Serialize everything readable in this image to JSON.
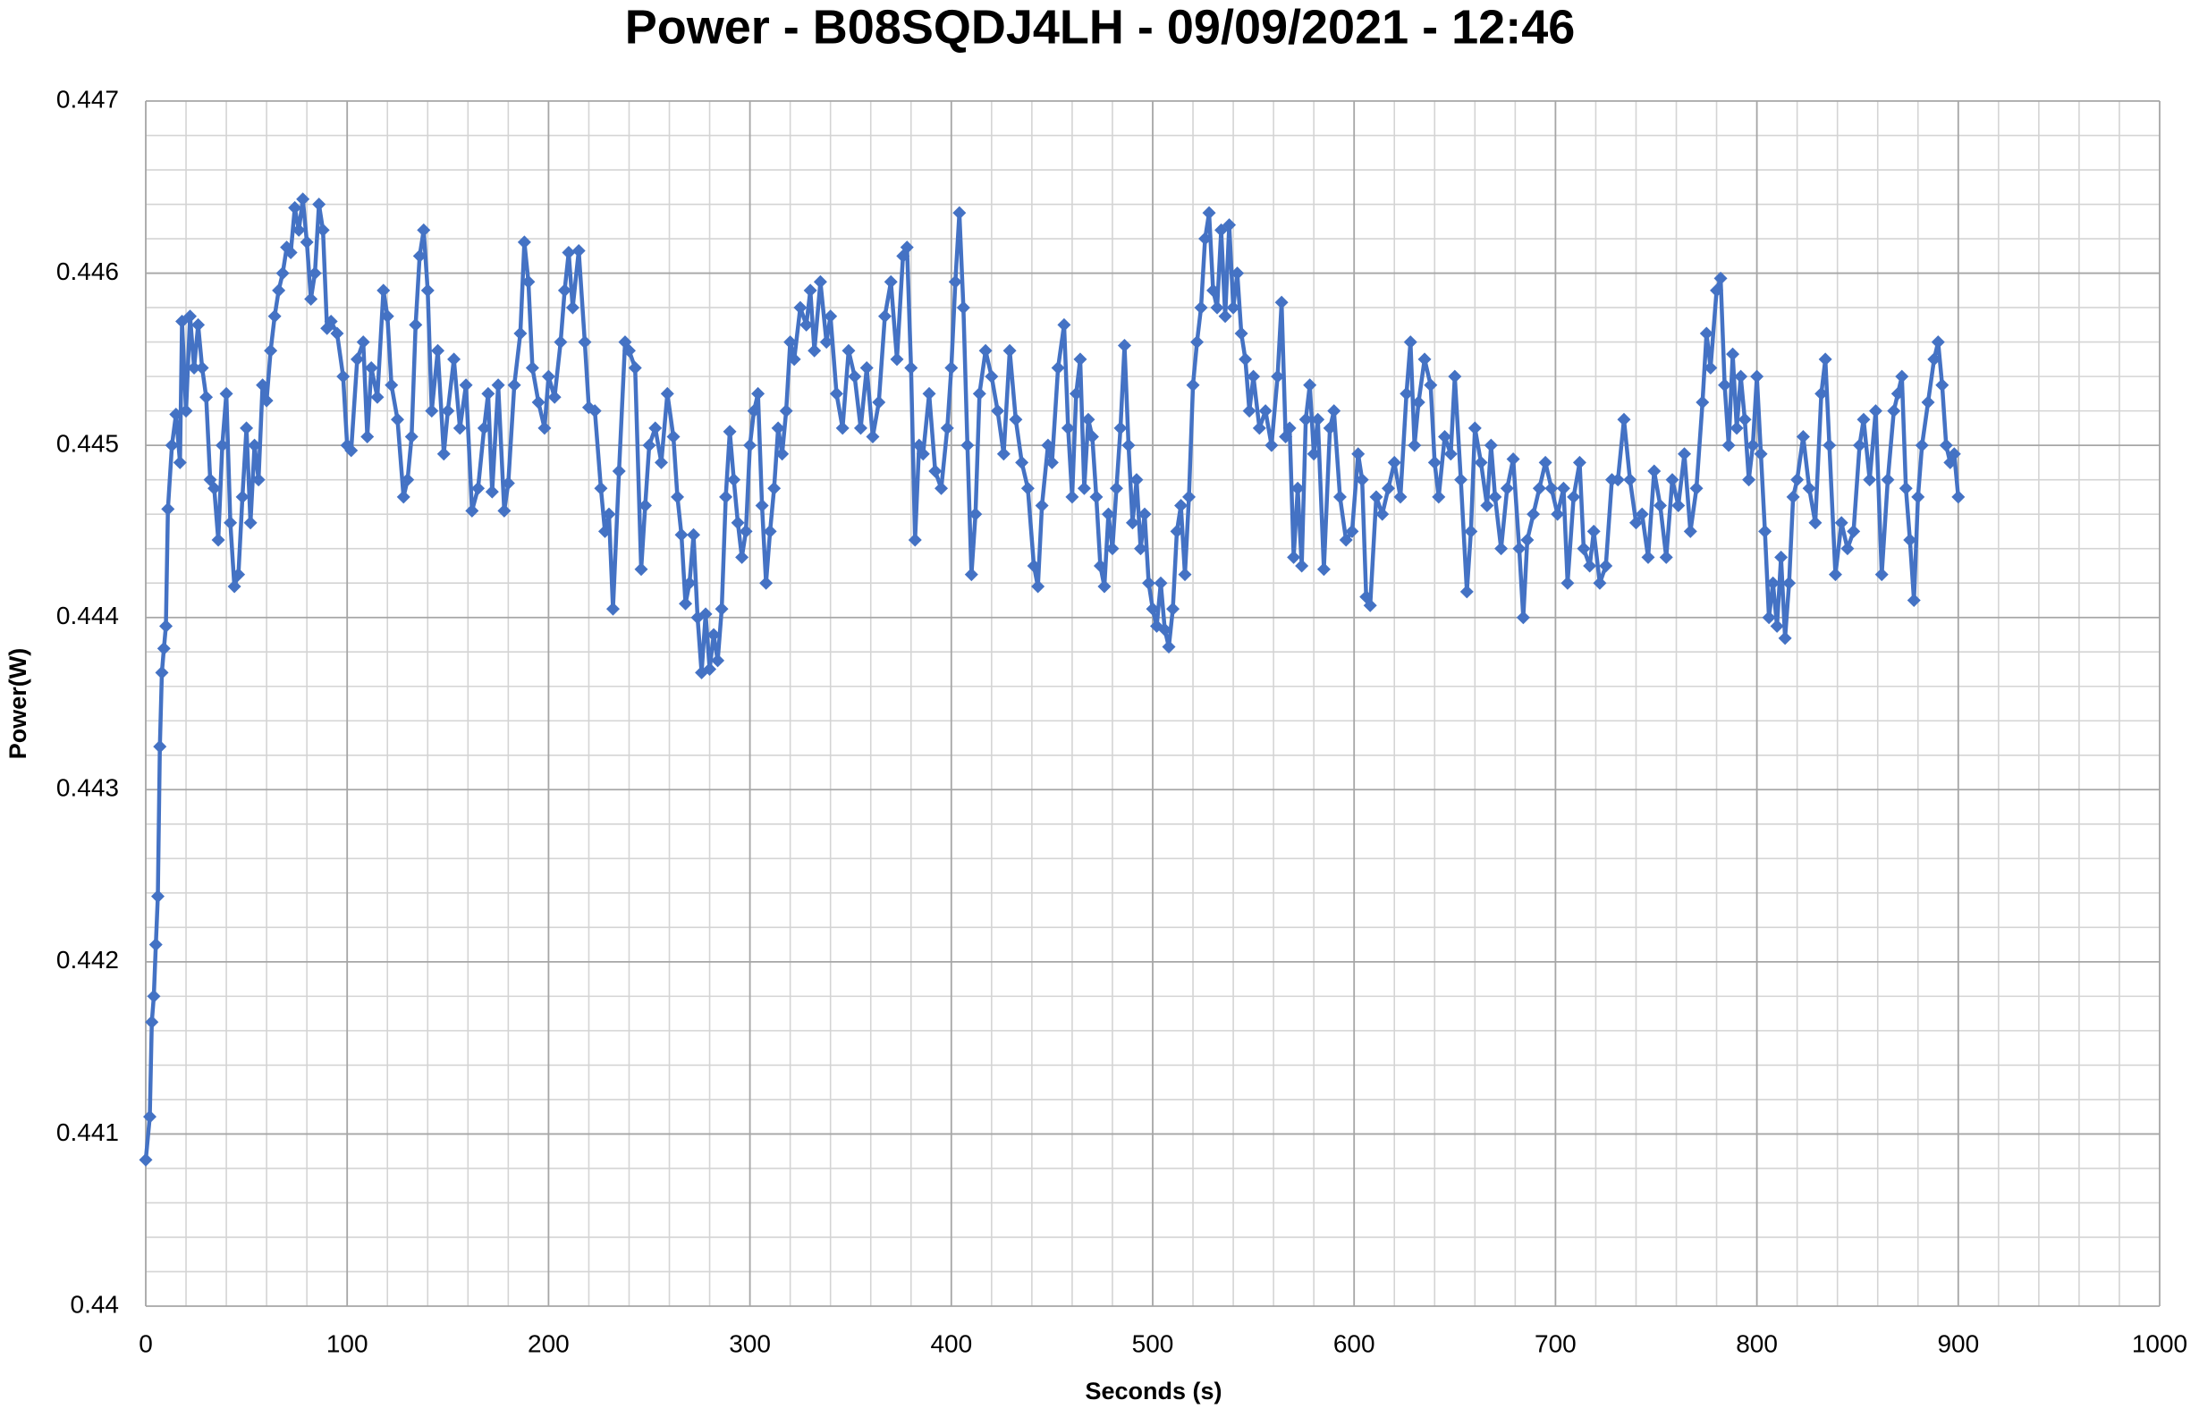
{
  "chart_data": {
    "type": "line",
    "title": "Power - B08SQDJ4LH - 09/09/2021 - 12:46",
    "x_label": "Seconds (s)",
    "y_label": "Power(W)",
    "color": "#4472c4",
    "marker": "diamond",
    "grid": true,
    "xlim": [
      0,
      1000
    ],
    "xticks": [
      0,
      100,
      200,
      300,
      400,
      500,
      600,
      700,
      800,
      900,
      1000
    ],
    "minor_xticks": [
      20,
      40,
      60,
      80,
      120,
      140,
      160,
      180,
      220,
      240,
      260,
      280,
      320,
      340,
      360,
      380,
      420,
      440,
      460,
      480,
      520,
      540,
      560,
      580,
      620,
      640,
      660,
      680,
      720,
      740,
      760,
      780,
      820,
      840,
      860,
      880,
      920,
      940,
      960,
      980
    ],
    "ylim": [
      0.44,
      0.447
    ],
    "yticks": [
      0.44,
      0.441,
      0.442,
      0.443,
      0.444,
      0.445,
      0.446,
      0.447
    ],
    "minor_yticks": [
      0.4402,
      0.4404,
      0.4406,
      0.4408,
      0.4412,
      0.4414,
      0.4416,
      0.4418,
      0.4422,
      0.4424,
      0.4426,
      0.4428,
      0.4432,
      0.4434,
      0.4436,
      0.4438,
      0.4442,
      0.4444,
      0.4446,
      0.4448,
      0.4452,
      0.4454,
      0.4456,
      0.4458,
      0.4462,
      0.4464,
      0.4466,
      0.4468
    ],
    "x": [
      0,
      2,
      3,
      4,
      5,
      6,
      7,
      8,
      9,
      10,
      11,
      13,
      15,
      17,
      18,
      20,
      22,
      24,
      26,
      28,
      30,
      32,
      34,
      36,
      38,
      40,
      42,
      44,
      46,
      48,
      50,
      52,
      54,
      56,
      58,
      60,
      62,
      64,
      66,
      68,
      70,
      72,
      74,
      76,
      78,
      80,
      82,
      84,
      86,
      88,
      90,
      92,
      95,
      98,
      100,
      102,
      105,
      108,
      110,
      112,
      115,
      118,
      120,
      122,
      125,
      128,
      130,
      132,
      134,
      136,
      138,
      140,
      142,
      145,
      148,
      150,
      153,
      156,
      159,
      162,
      165,
      168,
      170,
      172,
      175,
      178,
      180,
      183,
      186,
      188,
      190,
      192,
      195,
      198,
      200,
      203,
      206,
      208,
      210,
      212,
      215,
      218,
      220,
      223,
      226,
      228,
      230,
      232,
      235,
      238,
      240,
      243,
      246,
      248,
      250,
      253,
      256,
      259,
      262,
      264,
      266,
      268,
      270,
      272,
      274,
      276,
      278,
      280,
      282,
      284,
      286,
      288,
      290,
      292,
      294,
      296,
      298,
      300,
      302,
      304,
      306,
      308,
      310,
      312,
      314,
      316,
      318,
      320,
      322,
      325,
      328,
      330,
      332,
      335,
      338,
      340,
      343,
      346,
      349,
      352,
      355,
      358,
      361,
      364,
      367,
      370,
      373,
      376,
      378,
      380,
      382,
      384,
      386,
      389,
      392,
      395,
      398,
      400,
      402,
      404,
      406,
      408,
      410,
      412,
      414,
      417,
      420,
      423,
      426,
      429,
      432,
      435,
      438,
      441,
      443,
      445,
      448,
      450,
      453,
      456,
      458,
      460,
      462,
      464,
      466,
      468,
      470,
      472,
      474,
      476,
      478,
      480,
      482,
      484,
      486,
      488,
      490,
      492,
      494,
      496,
      498,
      500,
      502,
      504,
      506,
      508,
      510,
      512,
      514,
      516,
      518,
      520,
      522,
      524,
      526,
      528,
      530,
      532,
      534,
      536,
      538,
      540,
      542,
      544,
      546,
      548,
      550,
      553,
      556,
      559,
      562,
      564,
      566,
      568,
      570,
      572,
      574,
      576,
      578,
      580,
      582,
      585,
      588,
      590,
      593,
      596,
      599,
      602,
      604,
      606,
      608,
      611,
      614,
      617,
      620,
      623,
      626,
      628,
      630,
      632,
      635,
      638,
      640,
      642,
      645,
      648,
      650,
      653,
      656,
      658,
      660,
      663,
      666,
      668,
      670,
      673,
      676,
      679,
      682,
      684,
      686,
      689,
      692,
      695,
      698,
      701,
      704,
      706,
      709,
      712,
      714,
      717,
      719,
      722,
      725,
      728,
      731,
      734,
      737,
      740,
      743,
      746,
      749,
      752,
      755,
      758,
      761,
      764,
      767,
      770,
      773,
      775,
      777,
      780,
      782,
      784,
      786,
      788,
      790,
      792,
      794,
      796,
      798,
      800,
      802,
      804,
      806,
      808,
      810,
      812,
      814,
      816,
      818,
      820,
      823,
      826,
      829,
      832,
      834,
      836,
      839,
      842,
      845,
      848,
      851,
      853,
      856,
      859,
      862,
      865,
      868,
      870,
      872,
      874,
      876,
      878,
      880,
      882,
      885,
      888,
      890,
      892,
      894,
      896,
      898,
      900
    ],
    "values": [
      0.44085,
      0.4411,
      0.44165,
      0.4418,
      0.4421,
      0.44238,
      0.44325,
      0.44368,
      0.44382,
      0.44395,
      0.44463,
      0.445,
      0.44518,
      0.4449,
      0.44572,
      0.4452,
      0.44575,
      0.44545,
      0.4457,
      0.44545,
      0.44528,
      0.4448,
      0.44475,
      0.44445,
      0.445,
      0.4453,
      0.44455,
      0.44418,
      0.44425,
      0.4447,
      0.4451,
      0.44455,
      0.445,
      0.4448,
      0.44535,
      0.44526,
      0.44555,
      0.44575,
      0.4459,
      0.446,
      0.44615,
      0.44612,
      0.44638,
      0.44625,
      0.44643,
      0.44618,
      0.44585,
      0.446,
      0.4464,
      0.44625,
      0.44568,
      0.44572,
      0.44565,
      0.4454,
      0.445,
      0.44497,
      0.4455,
      0.4456,
      0.44505,
      0.44545,
      0.44528,
      0.4459,
      0.44575,
      0.44535,
      0.44515,
      0.4447,
      0.4448,
      0.44505,
      0.4457,
      0.4461,
      0.44625,
      0.4459,
      0.4452,
      0.44555,
      0.44495,
      0.4452,
      0.4455,
      0.4451,
      0.44535,
      0.44462,
      0.44475,
      0.4451,
      0.4453,
      0.44473,
      0.44535,
      0.44462,
      0.44478,
      0.44535,
      0.44565,
      0.44618,
      0.44595,
      0.44545,
      0.44525,
      0.4451,
      0.4454,
      0.44528,
      0.4456,
      0.4459,
      0.44612,
      0.4458,
      0.44613,
      0.4456,
      0.44522,
      0.4452,
      0.44475,
      0.4445,
      0.4446,
      0.44405,
      0.44485,
      0.4456,
      0.44555,
      0.44545,
      0.44428,
      0.44465,
      0.445,
      0.4451,
      0.4449,
      0.4453,
      0.44505,
      0.4447,
      0.44448,
      0.44408,
      0.4442,
      0.44448,
      0.444,
      0.44368,
      0.44402,
      0.4437,
      0.4439,
      0.44375,
      0.44405,
      0.4447,
      0.44508,
      0.4448,
      0.44455,
      0.44435,
      0.4445,
      0.445,
      0.4452,
      0.4453,
      0.44465,
      0.4442,
      0.4445,
      0.44475,
      0.4451,
      0.44495,
      0.4452,
      0.4456,
      0.4455,
      0.4458,
      0.4457,
      0.4459,
      0.44555,
      0.44595,
      0.4456,
      0.44575,
      0.4453,
      0.4451,
      0.44555,
      0.4454,
      0.4451,
      0.44545,
      0.44505,
      0.44525,
      0.44575,
      0.44595,
      0.4455,
      0.4461,
      0.44615,
      0.44545,
      0.44445,
      0.445,
      0.44495,
      0.4453,
      0.44485,
      0.44475,
      0.4451,
      0.44545,
      0.44595,
      0.44635,
      0.4458,
      0.445,
      0.44425,
      0.4446,
      0.4453,
      0.44555,
      0.4454,
      0.4452,
      0.44495,
      0.44555,
      0.44515,
      0.4449,
      0.44475,
      0.4443,
      0.44418,
      0.44465,
      0.445,
      0.4449,
      0.44545,
      0.4457,
      0.4451,
      0.4447,
      0.4453,
      0.4455,
      0.44475,
      0.44515,
      0.44505,
      0.4447,
      0.4443,
      0.44418,
      0.4446,
      0.4444,
      0.44475,
      0.4451,
      0.44558,
      0.445,
      0.44455,
      0.4448,
      0.4444,
      0.4446,
      0.4442,
      0.44405,
      0.44395,
      0.4442,
      0.44393,
      0.44383,
      0.44405,
      0.4445,
      0.44465,
      0.44425,
      0.4447,
      0.44535,
      0.4456,
      0.4458,
      0.4462,
      0.44635,
      0.4459,
      0.4458,
      0.44625,
      0.44575,
      0.44628,
      0.4458,
      0.446,
      0.44565,
      0.4455,
      0.4452,
      0.4454,
      0.4451,
      0.4452,
      0.445,
      0.4454,
      0.44583,
      0.44505,
      0.4451,
      0.44435,
      0.44475,
      0.4443,
      0.44515,
      0.44535,
      0.44495,
      0.44515,
      0.44428,
      0.4451,
      0.4452,
      0.4447,
      0.44445,
      0.4445,
      0.44495,
      0.4448,
      0.44412,
      0.44407,
      0.4447,
      0.4446,
      0.44475,
      0.4449,
      0.4447,
      0.4453,
      0.4456,
      0.445,
      0.44525,
      0.4455,
      0.44535,
      0.4449,
      0.4447,
      0.44505,
      0.44495,
      0.4454,
      0.4448,
      0.44415,
      0.4445,
      0.4451,
      0.4449,
      0.44465,
      0.445,
      0.4447,
      0.4444,
      0.44475,
      0.44492,
      0.4444,
      0.444,
      0.44445,
      0.4446,
      0.44475,
      0.4449,
      0.44475,
      0.4446,
      0.44475,
      0.4442,
      0.4447,
      0.4449,
      0.4444,
      0.4443,
      0.4445,
      0.4442,
      0.4443,
      0.4448,
      0.4448,
      0.44515,
      0.4448,
      0.44455,
      0.4446,
      0.44435,
      0.44485,
      0.44465,
      0.44435,
      0.4448,
      0.44465,
      0.44495,
      0.4445,
      0.44475,
      0.44525,
      0.44565,
      0.44545,
      0.4459,
      0.44597,
      0.44535,
      0.445,
      0.44553,
      0.4451,
      0.4454,
      0.44515,
      0.4448,
      0.445,
      0.4454,
      0.44495,
      0.4445,
      0.444,
      0.4442,
      0.44395,
      0.44435,
      0.44388,
      0.4442,
      0.4447,
      0.4448,
      0.44505,
      0.44475,
      0.44455,
      0.4453,
      0.4455,
      0.445,
      0.44425,
      0.44455,
      0.4444,
      0.4445,
      0.445,
      0.44515,
      0.4448,
      0.4452,
      0.44425,
      0.4448,
      0.4452,
      0.4453,
      0.4454,
      0.44475,
      0.44445,
      0.4441,
      0.4447,
      0.445,
      0.44525,
      0.4455,
      0.4456,
      0.44535,
      0.445,
      0.4449,
      0.44495,
      0.4447
    ]
  }
}
